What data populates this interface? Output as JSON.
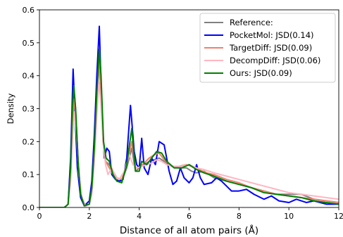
{
  "chart_data": {
    "type": "line",
    "title": "",
    "xlabel": "Distance of all atom pairs (Å)",
    "ylabel": "Density",
    "xlim": [
      0,
      12
    ],
    "ylim": [
      0,
      0.6
    ],
    "xticks": [
      "0",
      "2",
      "4",
      "6",
      "8",
      "10",
      "12"
    ],
    "yticks": [
      "0.0",
      "0.1",
      "0.2",
      "0.3",
      "0.4",
      "0.5",
      "0.6"
    ],
    "grid": false,
    "legend_position": "top-right",
    "series": [
      {
        "name": "Reference:",
        "color": "#808080",
        "points": [
          [
            0,
            0
          ],
          [
            1.0,
            0
          ],
          [
            1.15,
            0.01
          ],
          [
            1.25,
            0.1
          ],
          [
            1.32,
            0.25
          ],
          [
            1.38,
            0.36
          ],
          [
            1.45,
            0.3
          ],
          [
            1.55,
            0.14
          ],
          [
            1.65,
            0.04
          ],
          [
            1.8,
            0.006
          ],
          [
            2.0,
            0.01
          ],
          [
            2.1,
            0.05
          ],
          [
            2.2,
            0.16
          ],
          [
            2.3,
            0.32
          ],
          [
            2.4,
            0.46
          ],
          [
            2.45,
            0.4
          ],
          [
            2.55,
            0.2
          ],
          [
            2.65,
            0.14
          ],
          [
            2.8,
            0.13
          ],
          [
            2.95,
            0.11
          ],
          [
            3.1,
            0.09
          ],
          [
            3.3,
            0.08
          ],
          [
            3.5,
            0.12
          ],
          [
            3.7,
            0.18
          ],
          [
            3.85,
            0.11
          ],
          [
            4.0,
            0.12
          ],
          [
            4.2,
            0.13
          ],
          [
            4.4,
            0.14
          ],
          [
            4.6,
            0.145
          ],
          [
            4.8,
            0.15
          ],
          [
            5.0,
            0.14
          ],
          [
            5.3,
            0.125
          ],
          [
            5.6,
            0.12
          ],
          [
            5.9,
            0.12
          ],
          [
            6.1,
            0.11
          ],
          [
            6.3,
            0.105
          ],
          [
            6.6,
            0.11
          ],
          [
            7.0,
            0.09
          ],
          [
            7.5,
            0.08
          ],
          [
            8.0,
            0.07
          ],
          [
            8.5,
            0.06
          ],
          [
            9.0,
            0.05
          ],
          [
            9.5,
            0.04
          ],
          [
            10.0,
            0.04
          ],
          [
            10.5,
            0.04
          ],
          [
            11.0,
            0.025
          ],
          [
            11.5,
            0.02
          ],
          [
            12.0,
            0.015
          ]
        ]
      },
      {
        "name": "PocketMol: JSD(0.14)",
        "color": "#0000ff",
        "points": [
          [
            0,
            0
          ],
          [
            1.0,
            0
          ],
          [
            1.15,
            0.01
          ],
          [
            1.25,
            0.15
          ],
          [
            1.35,
            0.42
          ],
          [
            1.42,
            0.3
          ],
          [
            1.52,
            0.12
          ],
          [
            1.65,
            0.03
          ],
          [
            1.8,
            0.005
          ],
          [
            2.0,
            0.02
          ],
          [
            2.1,
            0.08
          ],
          [
            2.2,
            0.22
          ],
          [
            2.3,
            0.4
          ],
          [
            2.4,
            0.55
          ],
          [
            2.5,
            0.3
          ],
          [
            2.6,
            0.15
          ],
          [
            2.7,
            0.18
          ],
          [
            2.8,
            0.17
          ],
          [
            2.9,
            0.1
          ],
          [
            3.05,
            0.085
          ],
          [
            3.2,
            0.08
          ],
          [
            3.35,
            0.085
          ],
          [
            3.5,
            0.15
          ],
          [
            3.65,
            0.31
          ],
          [
            3.8,
            0.17
          ],
          [
            3.9,
            0.13
          ],
          [
            4.0,
            0.12
          ],
          [
            4.1,
            0.21
          ],
          [
            4.2,
            0.12
          ],
          [
            4.35,
            0.1
          ],
          [
            4.5,
            0.15
          ],
          [
            4.65,
            0.13
          ],
          [
            4.8,
            0.2
          ],
          [
            5.0,
            0.19
          ],
          [
            5.2,
            0.11
          ],
          [
            5.35,
            0.07
          ],
          [
            5.5,
            0.08
          ],
          [
            5.65,
            0.12
          ],
          [
            5.8,
            0.09
          ],
          [
            6.0,
            0.075
          ],
          [
            6.15,
            0.09
          ],
          [
            6.3,
            0.13
          ],
          [
            6.45,
            0.09
          ],
          [
            6.6,
            0.07
          ],
          [
            6.9,
            0.075
          ],
          [
            7.1,
            0.09
          ],
          [
            7.3,
            0.08
          ],
          [
            7.5,
            0.065
          ],
          [
            7.7,
            0.05
          ],
          [
            8.0,
            0.05
          ],
          [
            8.3,
            0.055
          ],
          [
            8.6,
            0.04
          ],
          [
            9.0,
            0.025
          ],
          [
            9.3,
            0.035
          ],
          [
            9.6,
            0.02
          ],
          [
            10.0,
            0.015
          ],
          [
            10.3,
            0.025
          ],
          [
            10.7,
            0.015
          ],
          [
            11.0,
            0.02
          ],
          [
            11.5,
            0.01
          ],
          [
            12.0,
            0.01
          ]
        ]
      },
      {
        "name": "TargetDiff: JSD(0.09)",
        "color": "#f08070",
        "points": [
          [
            0,
            0
          ],
          [
            1.0,
            0
          ],
          [
            1.15,
            0.01
          ],
          [
            1.25,
            0.1
          ],
          [
            1.33,
            0.27
          ],
          [
            1.4,
            0.33
          ],
          [
            1.48,
            0.25
          ],
          [
            1.58,
            0.1
          ],
          [
            1.7,
            0.03
          ],
          [
            1.85,
            0.004
          ],
          [
            2.0,
            0.01
          ],
          [
            2.1,
            0.05
          ],
          [
            2.2,
            0.17
          ],
          [
            2.3,
            0.33
          ],
          [
            2.38,
            0.44
          ],
          [
            2.45,
            0.37
          ],
          [
            2.55,
            0.2
          ],
          [
            2.65,
            0.14
          ],
          [
            2.8,
            0.12
          ],
          [
            2.95,
            0.1
          ],
          [
            3.1,
            0.09
          ],
          [
            3.3,
            0.085
          ],
          [
            3.5,
            0.13
          ],
          [
            3.7,
            0.2
          ],
          [
            3.85,
            0.12
          ],
          [
            4.0,
            0.12
          ],
          [
            4.2,
            0.135
          ],
          [
            4.4,
            0.15
          ],
          [
            4.6,
            0.16
          ],
          [
            4.8,
            0.165
          ],
          [
            5.0,
            0.145
          ],
          [
            5.3,
            0.125
          ],
          [
            5.6,
            0.125
          ],
          [
            5.9,
            0.13
          ],
          [
            6.1,
            0.125
          ],
          [
            6.4,
            0.115
          ],
          [
            6.7,
            0.105
          ],
          [
            7.0,
            0.1
          ],
          [
            7.5,
            0.085
          ],
          [
            8.0,
            0.075
          ],
          [
            8.5,
            0.06
          ],
          [
            9.0,
            0.05
          ],
          [
            9.5,
            0.04
          ],
          [
            10.0,
            0.035
          ],
          [
            10.5,
            0.03
          ],
          [
            11.0,
            0.025
          ],
          [
            11.5,
            0.02
          ],
          [
            12.0,
            0.015
          ]
        ]
      },
      {
        "name": "DecompDiff: JSD(0.06)",
        "color": "#ffb6c1",
        "points": [
          [
            0,
            0
          ],
          [
            1.0,
            0
          ],
          [
            1.15,
            0.01
          ],
          [
            1.25,
            0.08
          ],
          [
            1.33,
            0.22
          ],
          [
            1.4,
            0.29
          ],
          [
            1.48,
            0.23
          ],
          [
            1.58,
            0.1
          ],
          [
            1.7,
            0.03
          ],
          [
            1.85,
            0.004
          ],
          [
            2.0,
            0.01
          ],
          [
            2.1,
            0.04
          ],
          [
            2.2,
            0.14
          ],
          [
            2.3,
            0.28
          ],
          [
            2.38,
            0.38
          ],
          [
            2.45,
            0.33
          ],
          [
            2.55,
            0.2
          ],
          [
            2.65,
            0.13
          ],
          [
            2.75,
            0.1
          ],
          [
            2.9,
            0.12
          ],
          [
            3.05,
            0.095
          ],
          [
            3.2,
            0.085
          ],
          [
            3.4,
            0.11
          ],
          [
            3.6,
            0.16
          ],
          [
            3.75,
            0.13
          ],
          [
            3.9,
            0.12
          ],
          [
            4.1,
            0.125
          ],
          [
            4.3,
            0.13
          ],
          [
            4.5,
            0.135
          ],
          [
            4.7,
            0.145
          ],
          [
            4.9,
            0.14
          ],
          [
            5.1,
            0.13
          ],
          [
            5.4,
            0.125
          ],
          [
            5.7,
            0.125
          ],
          [
            6.0,
            0.13
          ],
          [
            6.3,
            0.12
          ],
          [
            6.6,
            0.115
          ],
          [
            7.0,
            0.105
          ],
          [
            7.5,
            0.095
          ],
          [
            8.0,
            0.085
          ],
          [
            8.5,
            0.075
          ],
          [
            9.0,
            0.065
          ],
          [
            9.5,
            0.055
          ],
          [
            10.0,
            0.045
          ],
          [
            10.5,
            0.04
          ],
          [
            11.0,
            0.035
          ],
          [
            11.5,
            0.03
          ],
          [
            12.0,
            0.025
          ]
        ]
      },
      {
        "name": "Ours: JSD(0.09)",
        "color": "#008000",
        "points": [
          [
            0,
            0
          ],
          [
            1.0,
            0
          ],
          [
            1.15,
            0.01
          ],
          [
            1.25,
            0.12
          ],
          [
            1.32,
            0.3
          ],
          [
            1.38,
            0.37
          ],
          [
            1.45,
            0.3
          ],
          [
            1.55,
            0.14
          ],
          [
            1.65,
            0.04
          ],
          [
            1.8,
            0.005
          ],
          [
            2.0,
            0.01
          ],
          [
            2.1,
            0.06
          ],
          [
            2.2,
            0.18
          ],
          [
            2.3,
            0.35
          ],
          [
            2.4,
            0.48
          ],
          [
            2.47,
            0.4
          ],
          [
            2.57,
            0.2
          ],
          [
            2.67,
            0.15
          ],
          [
            2.8,
            0.14
          ],
          [
            2.95,
            0.1
          ],
          [
            3.1,
            0.08
          ],
          [
            3.3,
            0.075
          ],
          [
            3.5,
            0.13
          ],
          [
            3.7,
            0.24
          ],
          [
            3.85,
            0.11
          ],
          [
            4.0,
            0.11
          ],
          [
            4.1,
            0.14
          ],
          [
            4.3,
            0.13
          ],
          [
            4.5,
            0.15
          ],
          [
            4.7,
            0.17
          ],
          [
            4.9,
            0.165
          ],
          [
            5.1,
            0.14
          ],
          [
            5.4,
            0.12
          ],
          [
            5.7,
            0.12
          ],
          [
            6.0,
            0.13
          ],
          [
            6.3,
            0.115
          ],
          [
            6.6,
            0.105
          ],
          [
            7.0,
            0.095
          ],
          [
            7.5,
            0.08
          ],
          [
            8.0,
            0.07
          ],
          [
            8.5,
            0.06
          ],
          [
            9.0,
            0.045
          ],
          [
            9.5,
            0.04
          ],
          [
            10.0,
            0.035
          ],
          [
            10.5,
            0.03
          ],
          [
            11.0,
            0.02
          ],
          [
            11.5,
            0.015
          ],
          [
            12.0,
            0.01
          ]
        ]
      }
    ]
  }
}
